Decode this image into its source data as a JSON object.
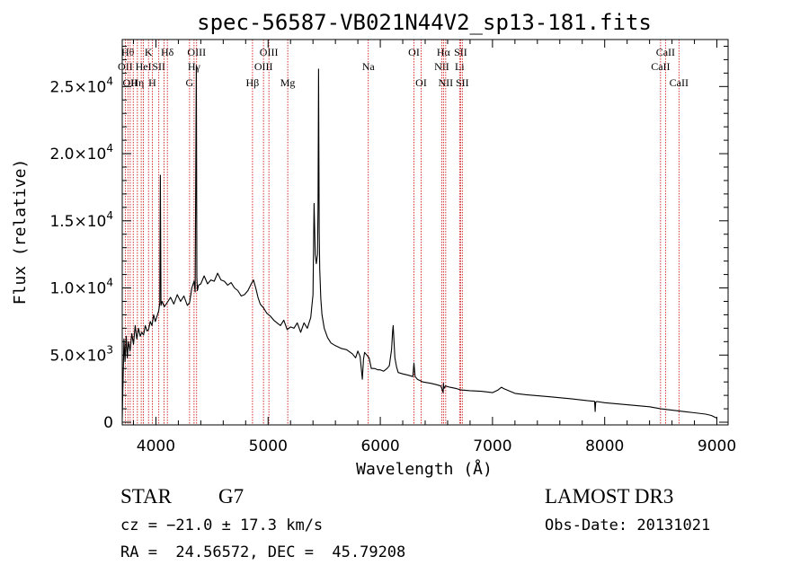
{
  "chart_data": {
    "type": "line",
    "title": "spec-56587-VB021N44V2_sp13-181.fits",
    "xlabel": "Wavelength (Å)",
    "ylabel": "Flux (relative)",
    "xlim": [
      3700,
      9100
    ],
    "ylim": [
      -200,
      28500
    ],
    "grid": false,
    "x_ticks": [
      {
        "value": 4000,
        "label": "4000"
      },
      {
        "value": 5000,
        "label": "5000"
      },
      {
        "value": 6000,
        "label": "6000"
      },
      {
        "value": 7000,
        "label": "7000"
      },
      {
        "value": 8000,
        "label": "8000"
      },
      {
        "value": 9000,
        "label": "9000"
      }
    ],
    "y_ticks": [
      {
        "value": 0,
        "mant": "0",
        "exp": ""
      },
      {
        "value": 5000,
        "mant": "5.0×10",
        "exp": "3"
      },
      {
        "value": 10000,
        "mant": "1.0×10",
        "exp": "4"
      },
      {
        "value": 15000,
        "mant": "1.5×10",
        "exp": "4"
      },
      {
        "value": 20000,
        "mant": "2.0×10",
        "exp": "4"
      },
      {
        "value": 25000,
        "mant": "2.5×10",
        "exp": "4"
      }
    ],
    "series": [
      {
        "color": "#000000",
        "x": [
          3700,
          3715,
          3725,
          3735,
          3745,
          3755,
          3770,
          3785,
          3800,
          3815,
          3830,
          3845,
          3860,
          3875,
          3890,
          3905,
          3920,
          3935,
          3950,
          3965,
          3980,
          3995,
          4010,
          4025,
          4035,
          4040,
          4045,
          4055,
          4075,
          4100,
          4130,
          4160,
          4190,
          4220,
          4250,
          4280,
          4300,
          4320,
          4340,
          4350,
          4360,
          4365,
          4370,
          4380,
          4400,
          4430,
          4460,
          4490,
          4520,
          4550,
          4580,
          4610,
          4640,
          4670,
          4700,
          4730,
          4760,
          4790,
          4820,
          4850,
          4870,
          4890,
          4910,
          4930,
          4960,
          4990,
          5020,
          5050,
          5080,
          5110,
          5140,
          5170,
          5200,
          5230,
          5260,
          5290,
          5320,
          5350,
          5380,
          5400,
          5410,
          5420,
          5430,
          5440,
          5445,
          5450,
          5455,
          5460,
          5470,
          5480,
          5500,
          5530,
          5560,
          5600,
          5650,
          5700,
          5750,
          5780,
          5800,
          5820,
          5840,
          5850,
          5860,
          5880,
          5900,
          5920,
          5950,
          5980,
          6000,
          6030,
          6060,
          6080,
          6100,
          6110,
          6115,
          6120,
          6130,
          6145,
          6160,
          6200,
          6250,
          6290,
          6300,
          6310,
          6330,
          6380,
          6450,
          6500,
          6540,
          6560,
          6563,
          6567,
          6580,
          6620,
          6680,
          6720,
          6800,
          6900,
          7000,
          7050,
          7080,
          7100,
          7200,
          7300,
          7500,
          7700,
          7850,
          7910,
          7915,
          7920,
          7930,
          8000,
          8200,
          8400,
          8500,
          8600,
          8700,
          8800,
          8900,
          8950,
          9000
        ],
        "y": [
          300,
          6200,
          4500,
          6400,
          4800,
          6000,
          5300,
          6600,
          5800,
          7200,
          6200,
          7000,
          6400,
          6700,
          6500,
          7200,
          6800,
          6900,
          7500,
          7200,
          8000,
          7500,
          7900,
          8300,
          8900,
          18400,
          8700,
          9000,
          8600,
          8900,
          9300,
          8800,
          9500,
          9000,
          9400,
          8700,
          8900,
          10000,
          10500,
          9700,
          26500,
          10800,
          9800,
          10200,
          10300,
          10900,
          10300,
          10600,
          10500,
          11100,
          10600,
          10500,
          10200,
          10400,
          10000,
          9800,
          9400,
          9500,
          9800,
          10300,
          10600,
          10000,
          9300,
          8800,
          8500,
          8100,
          7900,
          7600,
          7400,
          7200,
          7600,
          6900,
          7100,
          7000,
          7400,
          6700,
          7400,
          7000,
          7800,
          9500,
          16300,
          12500,
          11800,
          12500,
          16000,
          26300,
          14200,
          11400,
          9200,
          8000,
          7000,
          6300,
          5900,
          5700,
          5500,
          5400,
          5100,
          4800,
          5300,
          4900,
          3200,
          4700,
          5200,
          5000,
          4800,
          4000,
          4000,
          3900,
          3900,
          3800,
          4000,
          4200,
          5400,
          6800,
          7200,
          6300,
          4800,
          4100,
          3700,
          3600,
          3500,
          3400,
          4400,
          3400,
          3200,
          3000,
          2900,
          2800,
          2700,
          2200,
          2900,
          2500,
          2700,
          2600,
          2500,
          2400,
          2350,
          2300,
          2200,
          2400,
          2600,
          2500,
          2150,
          2050,
          1900,
          1750,
          1600,
          1550,
          800,
          1500,
          1540,
          1450,
          1300,
          1150,
          1000,
          900,
          800,
          700,
          600,
          500,
          300
        ]
      }
    ],
    "line_marks": [
      {
        "x": 3727,
        "label": "OII",
        "row": 1
      },
      {
        "x": 3750,
        "label": "Hθ",
        "row": 0
      },
      {
        "x": 3771,
        "label": "OII",
        "row": 2
      },
      {
        "x": 3798,
        "label": "",
        "row": -1
      },
      {
        "x": 3835,
        "label": "Hη",
        "row": 2
      },
      {
        "x": 3869,
        "label": "",
        "row": -1
      },
      {
        "x": 3889,
        "label": "HeI",
        "row": 1
      },
      {
        "x": 3934,
        "label": "K",
        "row": 0
      },
      {
        "x": 3968,
        "label": "H",
        "row": 2
      },
      {
        "x": 4026,
        "label": "SII",
        "row": 1
      },
      {
        "x": 4073,
        "label": "",
        "row": -1
      },
      {
        "x": 4102,
        "label": "Hδ",
        "row": 0
      },
      {
        "x": 4300,
        "label": "G",
        "row": 2
      },
      {
        "x": 4340,
        "label": "Hγ",
        "row": 1
      },
      {
        "x": 4363,
        "label": "OIII",
        "row": 0
      },
      {
        "x": 4861,
        "label": "Hβ",
        "row": 2
      },
      {
        "x": 4959,
        "label": "OIII",
        "row": 1
      },
      {
        "x": 5007,
        "label": "OIII",
        "row": 0
      },
      {
        "x": 5175,
        "label": "Mg",
        "row": 2
      },
      {
        "x": 5893,
        "label": "Na",
        "row": 1
      },
      {
        "x": 6300,
        "label": "OI",
        "row": 0
      },
      {
        "x": 6364,
        "label": "OI",
        "row": 2
      },
      {
        "x": 6548,
        "label": "NII",
        "row": 1
      },
      {
        "x": 6563,
        "label": "Hα",
        "row": 0
      },
      {
        "x": 6583,
        "label": "NII",
        "row": 2
      },
      {
        "x": 6707,
        "label": "Li",
        "row": 1
      },
      {
        "x": 6716,
        "label": "SII",
        "row": 0
      },
      {
        "x": 6731,
        "label": "SII",
        "row": 2
      },
      {
        "x": 8498,
        "label": "CaII",
        "row": 1
      },
      {
        "x": 8542,
        "label": "CaII",
        "row": 0
      },
      {
        "x": 8662,
        "label": "CaII",
        "row": 2
      }
    ],
    "line_mark_color": "#cc0000"
  },
  "footer": {
    "class_label": "STAR",
    "subclass": "G7",
    "survey": "LAMOST DR3",
    "cz": "cz = −21.0 ± 17.3 km/s",
    "obs_date": "Obs-Date: 20131021",
    "coords": "RA =  24.56572, DEC =  45.79208"
  }
}
